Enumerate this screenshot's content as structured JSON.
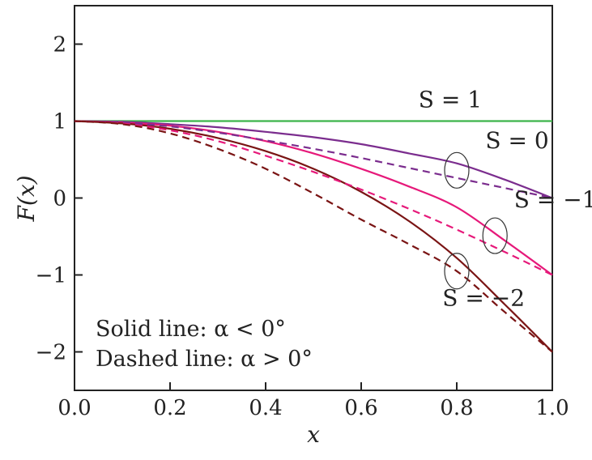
{
  "chart_data": {
    "type": "line",
    "xlabel": "x",
    "ylabel": "F(x)",
    "xlim": [
      0.0,
      1.0
    ],
    "ylim": [
      -2.5,
      2.5
    ],
    "x_ticks": [
      "0.0",
      "0.2",
      "0.4",
      "0.6",
      "0.8",
      "1.0"
    ],
    "y_ticks": [
      "2",
      "1",
      "0",
      "−1",
      "−2"
    ],
    "x": [
      0.0,
      0.1,
      0.2,
      0.3,
      0.4,
      0.5,
      0.6,
      0.7,
      0.8,
      0.9,
      1.0
    ],
    "series": [
      {
        "color": "#3cb44b",
        "style": "solid",
        "values": [
          1.0,
          1.0,
          1.0,
          1.0,
          1.0,
          1.0,
          1.0,
          1.0,
          1.0,
          1.0,
          1.0
        ]
      },
      {
        "color": "#7b2d8e",
        "style": "solid",
        "values": [
          1.0,
          0.99,
          0.96,
          0.92,
          0.86,
          0.79,
          0.7,
          0.58,
          0.45,
          0.24,
          0.0
        ]
      },
      {
        "color": "#e6197a",
        "style": "solid",
        "values": [
          1.0,
          0.98,
          0.94,
          0.86,
          0.74,
          0.58,
          0.38,
          0.15,
          -0.12,
          -0.55,
          -1.0
        ]
      },
      {
        "color": "#7a1414",
        "style": "solid",
        "values": [
          1.0,
          0.97,
          0.9,
          0.78,
          0.61,
          0.38,
          0.08,
          -0.3,
          -0.78,
          -1.38,
          -2.0
        ]
      },
      {
        "color": "#7b2d8e",
        "style": "dashed",
        "values": [
          1.0,
          0.98,
          0.93,
          0.85,
          0.75,
          0.64,
          0.52,
          0.39,
          0.26,
          0.13,
          0.0
        ]
      },
      {
        "color": "#e6197a",
        "style": "dashed",
        "values": [
          1.0,
          0.97,
          0.88,
          0.74,
          0.55,
          0.34,
          0.11,
          -0.14,
          -0.41,
          -0.7,
          -1.0
        ]
      },
      {
        "color": "#7a1414",
        "style": "dashed",
        "values": [
          1.0,
          0.96,
          0.84,
          0.64,
          0.38,
          0.06,
          -0.28,
          -0.6,
          -0.95,
          -1.48,
          -2.0
        ]
      }
    ],
    "annotations": [
      {
        "text": "S = 1",
        "x": 0.72,
        "y": 1.18
      },
      {
        "text": "S = 0",
        "x": 0.86,
        "y": 0.65
      },
      {
        "text": "S = −1",
        "x": 0.92,
        "y": -0.12
      },
      {
        "text": "S = −2",
        "x": 0.77,
        "y": -1.4
      }
    ],
    "ellipses": [
      {
        "x": 0.8,
        "y": 0.36
      },
      {
        "x": 0.88,
        "y": -0.49
      },
      {
        "x": 0.8,
        "y": -0.95
      }
    ],
    "notes": [
      "Solid line: α < 0°",
      "Dashed line: α > 0°"
    ],
    "grid": false
  }
}
